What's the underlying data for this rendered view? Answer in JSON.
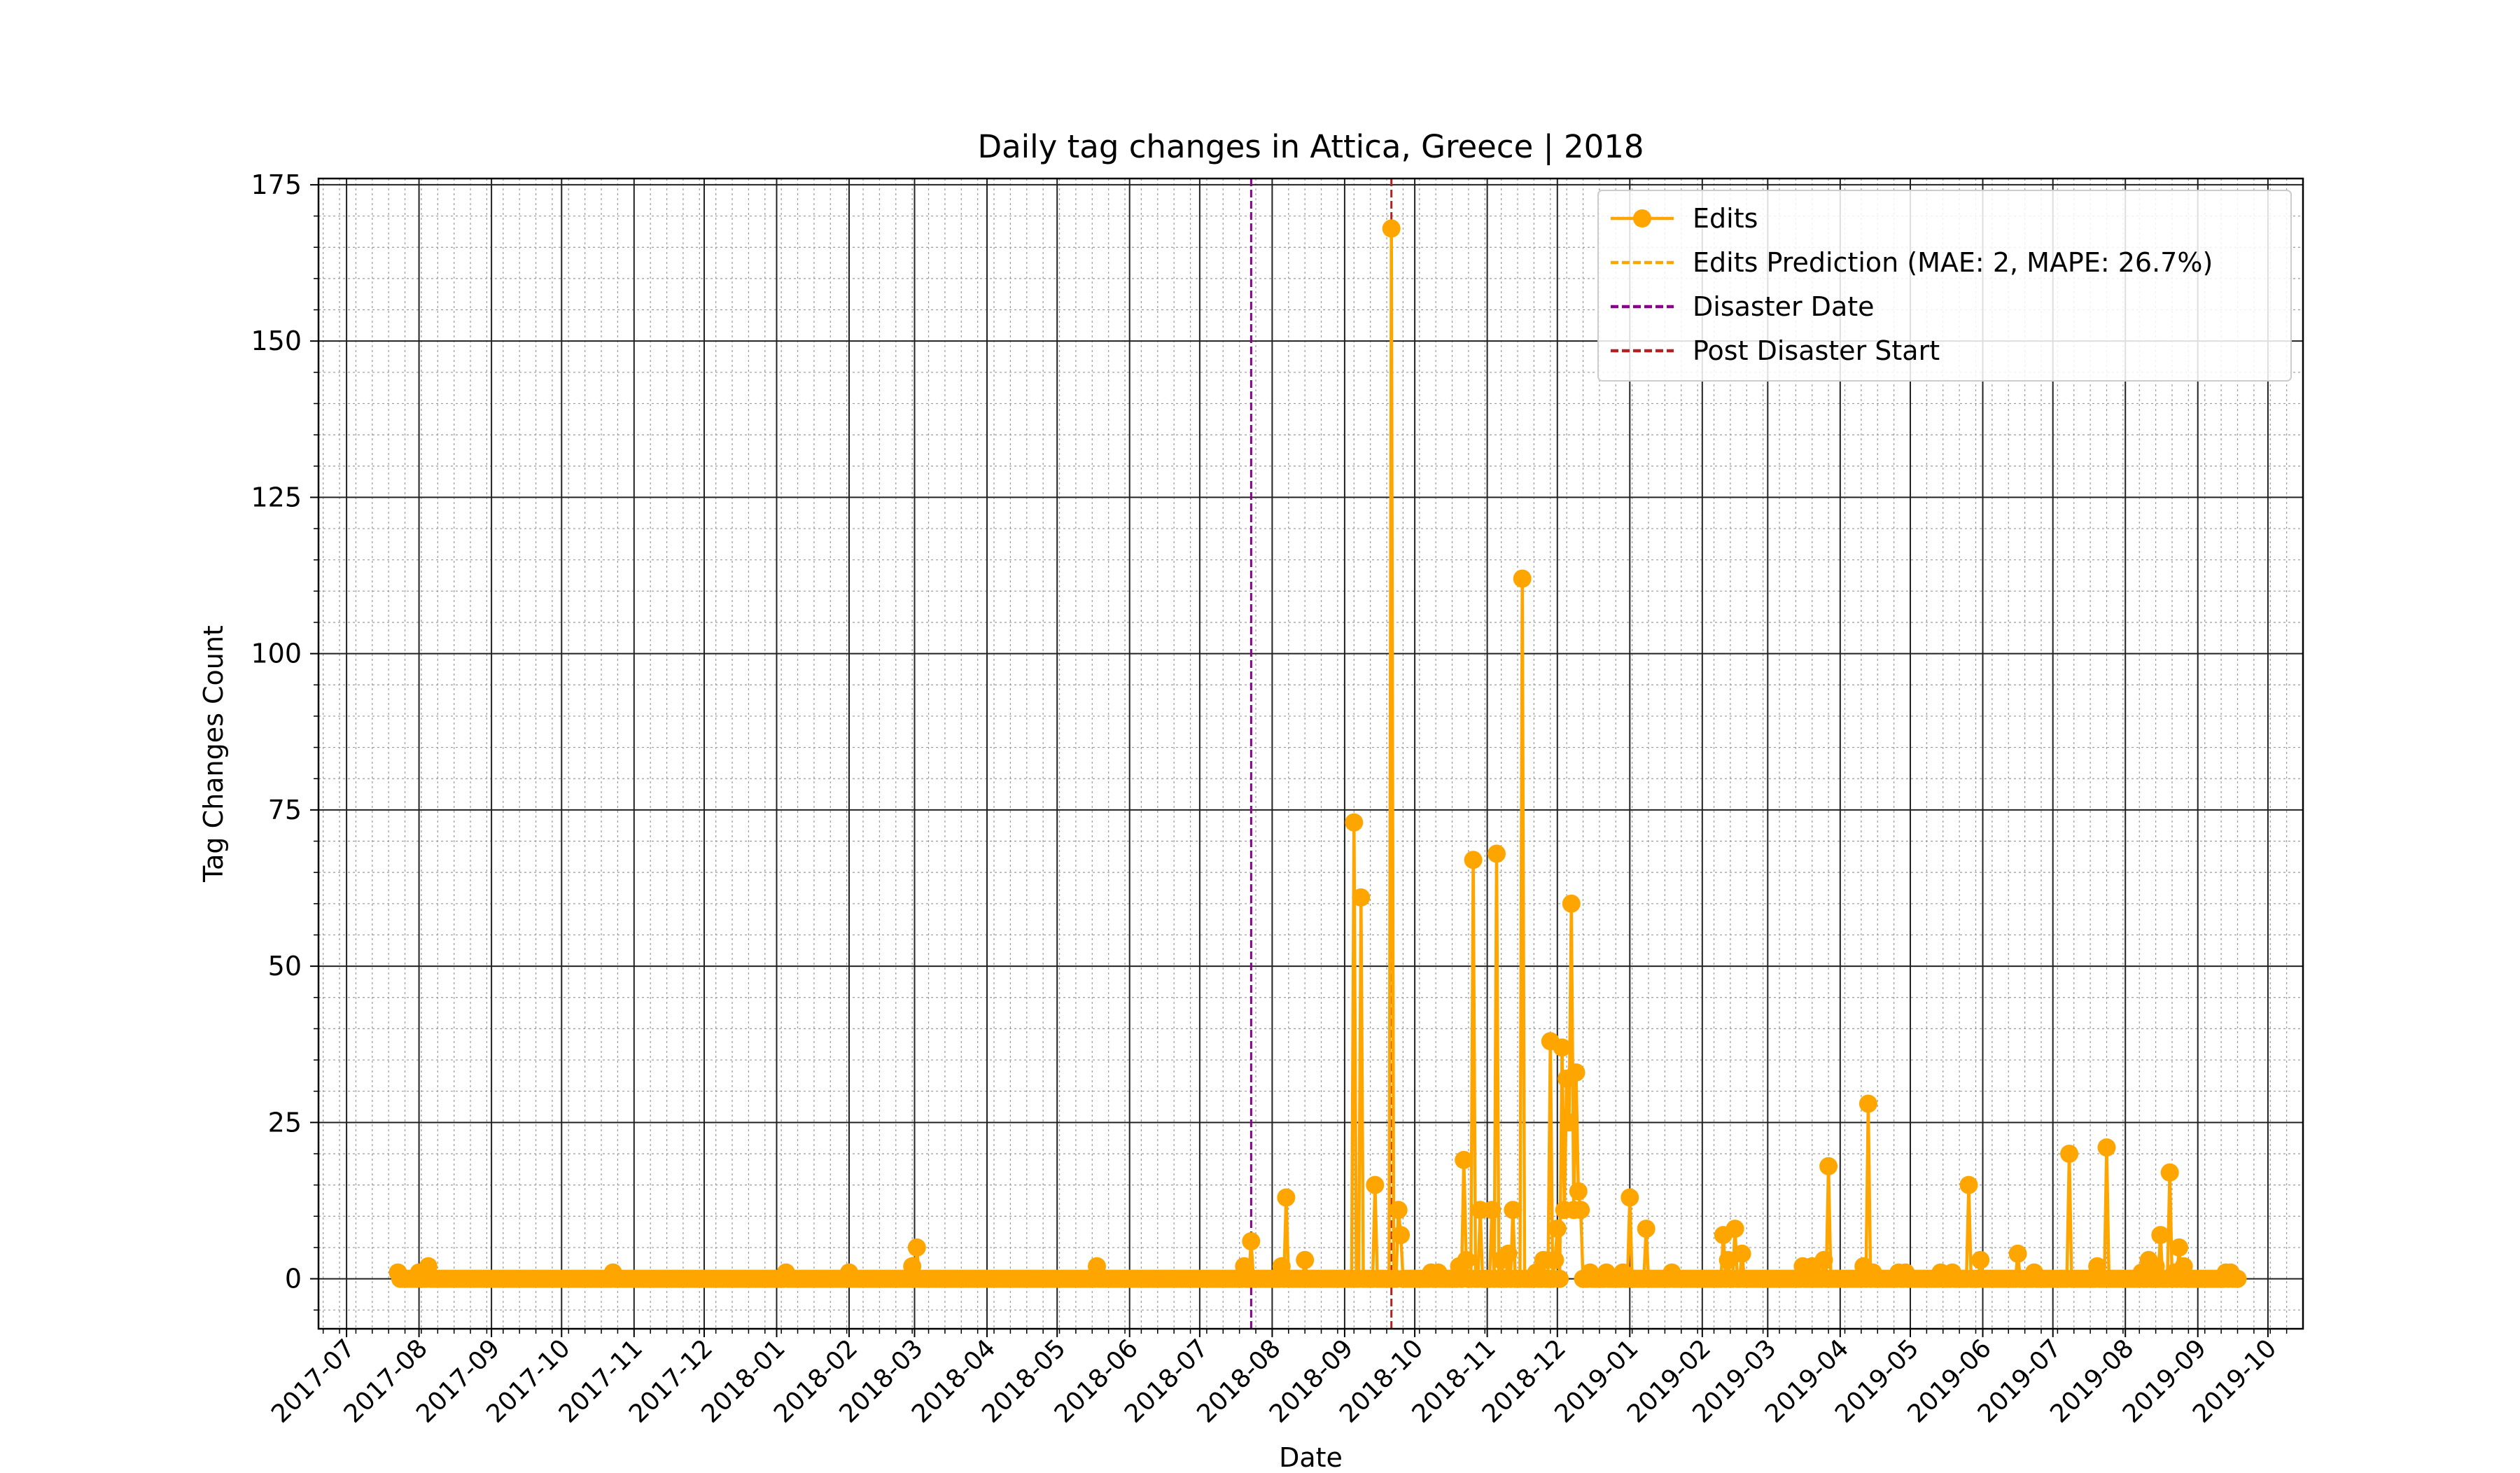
{
  "chart_data": {
    "type": "line",
    "title": "Daily tag changes in Attica, Greece | 2018",
    "xlabel": "Date",
    "ylabel": "Tag Changes Count",
    "xlim": [
      "2017-06-19",
      "2019-10-16"
    ],
    "ylim": [
      -8,
      176
    ],
    "y_ticks": [
      0,
      25,
      50,
      75,
      100,
      125,
      150,
      175
    ],
    "x_ticks": [
      "2017-07",
      "2017-08",
      "2017-09",
      "2017-10",
      "2017-11",
      "2017-12",
      "2018-01",
      "2018-02",
      "2018-03",
      "2018-04",
      "2018-05",
      "2018-06",
      "2018-07",
      "2018-08",
      "2018-09",
      "2018-10",
      "2018-11",
      "2018-12",
      "2019-01",
      "2019-02",
      "2019-03",
      "2019-04",
      "2019-05",
      "2019-06",
      "2019-07",
      "2019-08",
      "2019-09",
      "2019-10"
    ],
    "grid": true,
    "minor_grid": true,
    "legend_position": "top-right",
    "x_range": [
      "2017-07-23",
      "2019-09-18"
    ],
    "series": [
      {
        "name": "Edits",
        "color": "#ffa500",
        "marker": "circle",
        "baseline": 0,
        "points": [
          [
            "2017-07-23",
            1
          ],
          [
            "2017-08-01",
            1
          ],
          [
            "2017-08-05",
            2
          ],
          [
            "2017-10-23",
            1
          ],
          [
            "2018-01-05",
            1
          ],
          [
            "2018-02-01",
            1
          ],
          [
            "2018-02-28",
            2
          ],
          [
            "2018-03-02",
            5
          ],
          [
            "2018-05-18",
            2
          ],
          [
            "2018-07-20",
            2
          ],
          [
            "2018-07-23",
            6
          ],
          [
            "2018-08-05",
            2
          ],
          [
            "2018-08-07",
            13
          ],
          [
            "2018-08-15",
            3
          ],
          [
            "2018-09-05",
            73
          ],
          [
            "2018-09-08",
            61
          ],
          [
            "2018-09-14",
            15
          ],
          [
            "2018-09-21",
            168
          ],
          [
            "2018-09-24",
            11
          ],
          [
            "2018-09-25",
            7
          ],
          [
            "2018-10-08",
            1
          ],
          [
            "2018-10-11",
            1
          ],
          [
            "2018-10-20",
            2
          ],
          [
            "2018-10-22",
            19
          ],
          [
            "2018-10-23",
            3
          ],
          [
            "2018-10-26",
            67
          ],
          [
            "2018-10-29",
            11
          ],
          [
            "2018-11-03",
            11
          ],
          [
            "2018-11-05",
            68
          ],
          [
            "2018-11-07",
            3
          ],
          [
            "2018-11-10",
            4
          ],
          [
            "2018-11-12",
            11
          ],
          [
            "2018-11-16",
            112
          ],
          [
            "2018-11-22",
            1
          ],
          [
            "2018-11-25",
            3
          ],
          [
            "2018-11-28",
            38
          ],
          [
            "2018-11-30",
            3
          ],
          [
            "2018-12-01",
            8
          ],
          [
            "2018-12-03",
            37
          ],
          [
            "2018-12-04",
            11
          ],
          [
            "2018-12-05",
            32
          ],
          [
            "2018-12-06",
            25
          ],
          [
            "2018-12-07",
            60
          ],
          [
            "2018-12-08",
            11
          ],
          [
            "2018-12-09",
            33
          ],
          [
            "2018-12-10",
            14
          ],
          [
            "2018-12-11",
            11
          ],
          [
            "2018-12-15",
            1
          ],
          [
            "2018-12-22",
            1
          ],
          [
            "2018-12-29",
            1
          ],
          [
            "2019-01-01",
            13
          ],
          [
            "2019-01-08",
            8
          ],
          [
            "2019-01-19",
            1
          ],
          [
            "2019-02-10",
            7
          ],
          [
            "2019-02-12",
            3
          ],
          [
            "2019-02-15",
            8
          ],
          [
            "2019-02-18",
            4
          ],
          [
            "2019-03-16",
            2
          ],
          [
            "2019-03-20",
            2
          ],
          [
            "2019-03-25",
            3
          ],
          [
            "2019-03-27",
            18
          ],
          [
            "2019-04-11",
            2
          ],
          [
            "2019-04-13",
            28
          ],
          [
            "2019-04-15",
            1
          ],
          [
            "2019-04-26",
            1
          ],
          [
            "2019-04-29",
            1
          ],
          [
            "2019-05-14",
            1
          ],
          [
            "2019-05-19",
            1
          ],
          [
            "2019-05-26",
            15
          ],
          [
            "2019-05-31",
            3
          ],
          [
            "2019-06-16",
            4
          ],
          [
            "2019-06-23",
            1
          ],
          [
            "2019-07-08",
            20
          ],
          [
            "2019-07-20",
            2
          ],
          [
            "2019-07-24",
            21
          ],
          [
            "2019-08-08",
            1
          ],
          [
            "2019-08-11",
            3
          ],
          [
            "2019-08-14",
            2
          ],
          [
            "2019-08-16",
            7
          ],
          [
            "2019-08-20",
            17
          ],
          [
            "2019-08-22",
            1
          ],
          [
            "2019-08-24",
            5
          ],
          [
            "2019-08-26",
            2
          ],
          [
            "2019-09-13",
            1
          ],
          [
            "2019-09-15",
            1
          ]
        ]
      },
      {
        "name": "Edits Prediction (MAE: 2, MAPE: 26.7%)",
        "color": "#ffa500",
        "line_style": "dashed",
        "values": []
      }
    ],
    "vlines": [
      {
        "name": "Disaster Date",
        "date": "2018-07-23",
        "color": "#8b008b"
      },
      {
        "name": "Post Disaster Start",
        "date": "2018-09-21",
        "color": "#b22222"
      }
    ]
  }
}
